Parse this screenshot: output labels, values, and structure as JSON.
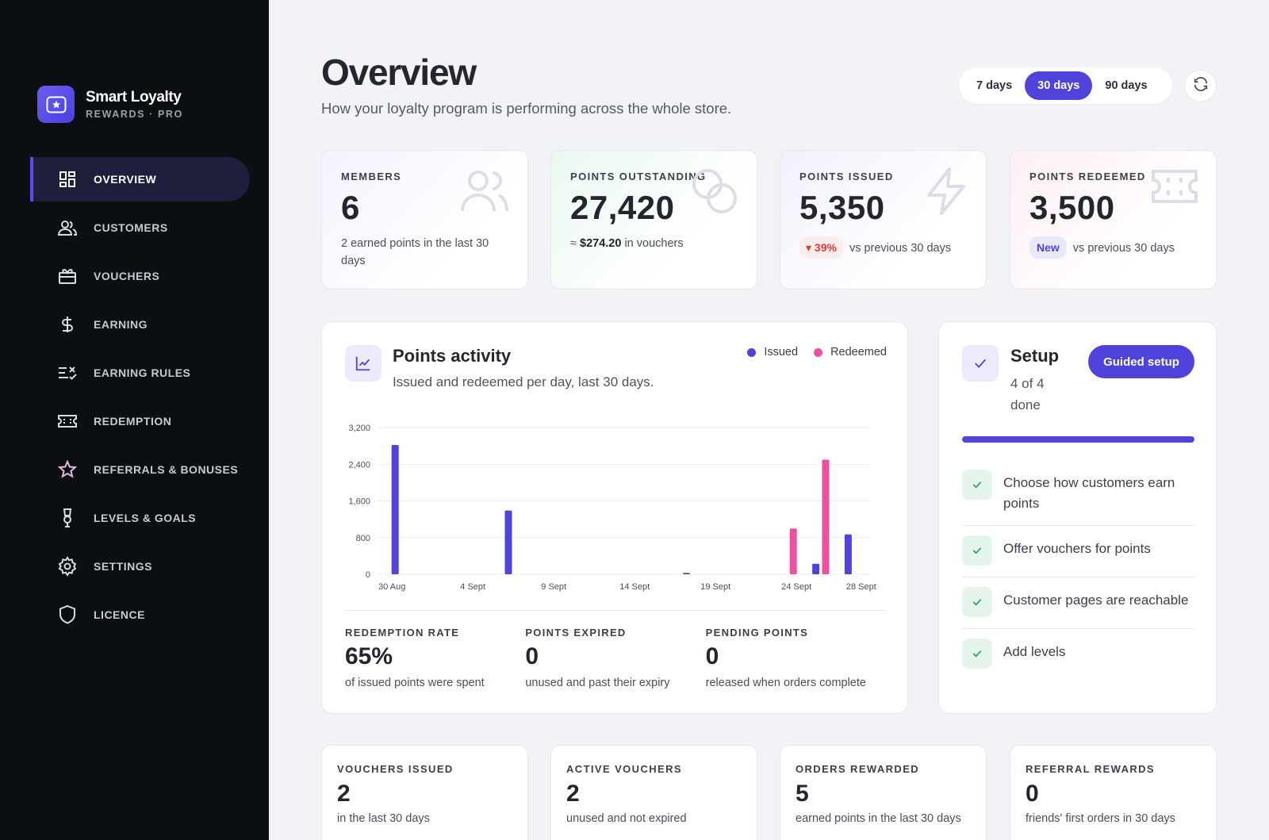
{
  "brand": {
    "name": "Smart Loyalty",
    "subtitle": "REWARDS · PRO"
  },
  "nav": [
    {
      "label": "OVERVIEW",
      "icon": "dashboard-icon",
      "active": true
    },
    {
      "label": "CUSTOMERS",
      "icon": "users-icon"
    },
    {
      "label": "VOUCHERS",
      "icon": "gift-icon"
    },
    {
      "label": "EARNING",
      "icon": "dollar-icon"
    },
    {
      "label": "EARNING RULES",
      "icon": "rules-icon"
    },
    {
      "label": "REDEMPTION",
      "icon": "ticket-icon"
    },
    {
      "label": "REFERRALS & BONUSES",
      "icon": "star-icon"
    },
    {
      "label": "LEVELS & GOALS",
      "icon": "medal-icon"
    },
    {
      "label": "SETTINGS",
      "icon": "gear-icon"
    },
    {
      "label": "LICENCE",
      "icon": "shield-icon"
    }
  ],
  "header": {
    "title": "Overview",
    "subtitle": "How your loyalty program is performing across the whole store.",
    "ranges": [
      "7 days",
      "30 days",
      "90 days"
    ],
    "active_range": "30 days"
  },
  "stats": {
    "members": {
      "label": "MEMBERS",
      "value": "6",
      "note": "2 earned points in the last 30 days"
    },
    "outstanding": {
      "label": "POINTS OUTSTANDING",
      "value": "27,420",
      "note_prefix": "≈",
      "note_amount": "$274.20",
      "note_suffix": "in vouchers"
    },
    "issued": {
      "label": "POINTS ISSUED",
      "value": "5,350",
      "badge": "▾ 39%",
      "note": "vs previous 30 days"
    },
    "redeemed": {
      "label": "POINTS REDEEMED",
      "value": "3,500",
      "badge": "New",
      "note": "vs previous 30 days"
    }
  },
  "activity": {
    "title": "Points activity",
    "subtitle": "Issued and redeemed per day, last 30 days.",
    "legend": {
      "issued": "Issued",
      "redeemed": "Redeemed"
    },
    "metrics": [
      {
        "label": "REDEMPTION RATE",
        "value": "65%",
        "note": "of issued points were spent"
      },
      {
        "label": "POINTS EXPIRED",
        "value": "0",
        "note": "unused and past their expiry"
      },
      {
        "label": "PENDING POINTS",
        "value": "0",
        "note": "released when orders complete"
      }
    ]
  },
  "chart_data": {
    "type": "bar",
    "x_ticks": [
      "30 Aug",
      "4 Sept",
      "9 Sept",
      "14 Sept",
      "19 Sept",
      "24 Sept",
      "28 Sept"
    ],
    "y_ticks": [
      "3,200",
      "2,400",
      "1,600",
      "800",
      "0"
    ],
    "ylim": [
      0,
      3200
    ],
    "series": [
      {
        "name": "Issued",
        "color": "#4f43db",
        "points": [
          {
            "day": "30 Aug",
            "value": 2820
          },
          {
            "day": "6 Sept",
            "value": 1390
          },
          {
            "day": "17 Sept",
            "value": 30
          },
          {
            "day": "25 Sept",
            "value": 230
          },
          {
            "day": "27 Sept",
            "value": 870
          }
        ]
      },
      {
        "name": "Redeemed",
        "color": "#f04ea0",
        "points": [
          {
            "day": "24 Sept",
            "value": 1000
          },
          {
            "day": "26 Sept",
            "value": 2500
          }
        ]
      }
    ]
  },
  "setup": {
    "title": "Setup",
    "progress_text": "4 of 4 done",
    "progress_fraction": 1.0,
    "guided_label": "Guided setup",
    "tasks": [
      "Choose how customers earn points",
      "Offer vouchers for points",
      "Customer pages are reachable",
      "Add levels"
    ]
  },
  "bottom": [
    {
      "label": "VOUCHERS ISSUED",
      "value": "2",
      "note": "in the last 30 days"
    },
    {
      "label": "ACTIVE VOUCHERS",
      "value": "2",
      "note": "unused and not expired"
    },
    {
      "label": "ORDERS REWARDED",
      "value": "5",
      "note": "earned points in the last 30 days"
    },
    {
      "label": "REFERRAL REWARDS",
      "value": "0",
      "note": "friends' first orders in 30 days"
    }
  ],
  "colors": {
    "accent": "#4f43db",
    "redeemed": "#f04ea0",
    "sidebar": "#0c0f12",
    "down": "#d43a3a"
  }
}
